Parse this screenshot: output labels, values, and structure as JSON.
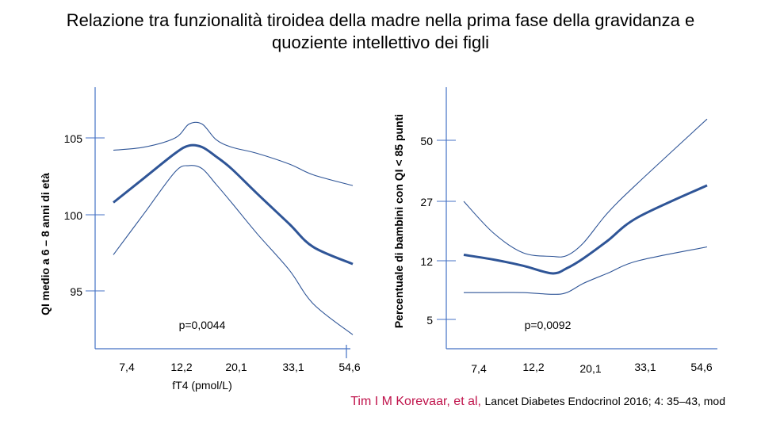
{
  "title": {
    "line1": "Relazione tra funzionalità tiroidea della madre nella prima fase della gravidanza e",
    "line2": "quoziente intellettivo dei figli"
  },
  "chart_data": [
    {
      "type": "line",
      "ylabel": "QI medio a 6 – 8 anni di età",
      "xlabel": "fT4 (pmol/L)",
      "x_ticks": [
        "7,4",
        "12,2",
        "20,1",
        "33,1",
        "54,6"
      ],
      "y_ticks": [
        "95",
        "100",
        "105"
      ],
      "ylim": [
        91,
        108
      ],
      "annotation": "p=0,0044",
      "series": [
        {
          "name": "mean",
          "x": [
            7.4,
            9.5,
            12.2,
            13.8,
            15.5,
            17.5,
            20.1,
            25,
            33.1,
            40,
            54.6
          ],
          "values": [
            100.8,
            102.4,
            104.0,
            104.5,
            104.4,
            103.8,
            103.0,
            101.4,
            99.4,
            97.9,
            96.8
          ]
        },
        {
          "name": "upper_ci",
          "x": [
            7.4,
            9.5,
            12.2,
            13.8,
            15.5,
            17.5,
            20.1,
            25,
            33.1,
            40,
            54.6
          ],
          "values": [
            104.2,
            104.4,
            105.0,
            105.9,
            105.9,
            104.9,
            104.4,
            104.0,
            103.3,
            102.6,
            101.9
          ]
        },
        {
          "name": "lower_ci",
          "x": [
            7.4,
            9.5,
            12.2,
            13.8,
            15.5,
            17.5,
            20.1,
            25,
            33.1,
            40,
            54.6
          ],
          "values": [
            97.4,
            100.1,
            102.8,
            103.2,
            103.0,
            102.0,
            100.8,
            98.8,
            96.4,
            94.2,
            92.2
          ]
        }
      ]
    },
    {
      "type": "line",
      "ylabel": "Percentuale di bambini con QI < 85 punti",
      "xlabel": "",
      "x_ticks": [
        "7,4",
        "12,2",
        "20,1",
        "33,1",
        "54,6"
      ],
      "y_ticks": [
        "5",
        "12",
        "27",
        "50"
      ],
      "annotation": "p=0,0092",
      "series": [
        {
          "name": "mean",
          "x": [
            7.4,
            9.5,
            12.2,
            15.5,
            17.5,
            20.1,
            25,
            33.1,
            54.6
          ],
          "values": [
            13.5,
            12.3,
            11.4,
            10.5,
            11.1,
            12.6,
            17,
            23,
            33
          ]
        },
        {
          "name": "upper_ci",
          "x": [
            7.4,
            9.5,
            12.2,
            15.5,
            17.5,
            20.1,
            25,
            33.1,
            54.6
          ],
          "values": [
            27,
            19,
            14,
            13.1,
            13.3,
            16.5,
            24,
            34,
            58
          ]
        },
        {
          "name": "lower_ci",
          "x": [
            7.4,
            9.5,
            12.2,
            15.5,
            17.5,
            20.1,
            25,
            33.1,
            54.6
          ],
          "values": [
            8.2,
            8.2,
            8.2,
            8.0,
            8.2,
            9.3,
            10.5,
            12,
            15.5
          ]
        }
      ]
    }
  ],
  "reference": {
    "authors": "Tim I M Korevaar, et al,",
    "journal": "Lancet Diabetes Endocrinol 2016; 4: 35–43, mod"
  },
  "colors": {
    "axis": "#4472c4",
    "line": "#2f5597"
  }
}
